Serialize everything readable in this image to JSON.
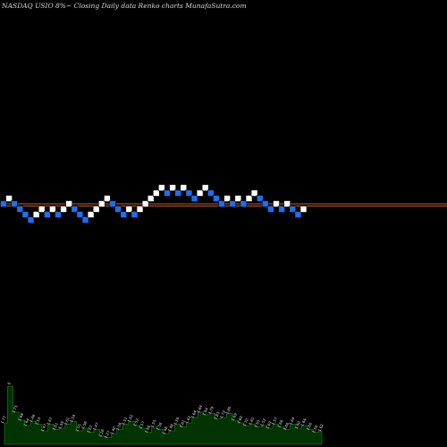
{
  "header": {
    "text": "NASDAQ USIO 8%~ Closing Daily data Renko charts MunafaSutra.com"
  },
  "chart_data": {
    "type": "renko",
    "colors": {
      "background": "#000000",
      "brick_up": "#ffffff",
      "brick_down": "#1e6ef0",
      "brick_border": "#000000",
      "ref_line": "#c85a28",
      "volume_fill": "#003300",
      "volume_line": "#1a6e1a",
      "volume_label": "#e8e8e8"
    },
    "ref_lines": [
      1.0,
      0.6
    ],
    "bricks": [
      {
        "level": 1,
        "dir": "down"
      },
      {
        "level": 2,
        "dir": "up"
      },
      {
        "level": 1,
        "dir": "down"
      },
      {
        "level": 0,
        "dir": "down"
      },
      {
        "level": -1,
        "dir": "down"
      },
      {
        "level": -2,
        "dir": "down"
      },
      {
        "level": -1,
        "dir": "up"
      },
      {
        "level": 0,
        "dir": "up"
      },
      {
        "level": -1,
        "dir": "down"
      },
      {
        "level": 0,
        "dir": "up"
      },
      {
        "level": -1,
        "dir": "down"
      },
      {
        "level": 0,
        "dir": "up"
      },
      {
        "level": 1,
        "dir": "up"
      },
      {
        "level": 0,
        "dir": "down"
      },
      {
        "level": -1,
        "dir": "down"
      },
      {
        "level": -2,
        "dir": "down"
      },
      {
        "level": -1,
        "dir": "up"
      },
      {
        "level": 0,
        "dir": "up"
      },
      {
        "level": 1,
        "dir": "up"
      },
      {
        "level": 2,
        "dir": "up"
      },
      {
        "level": 1,
        "dir": "down"
      },
      {
        "level": 0,
        "dir": "down"
      },
      {
        "level": -1,
        "dir": "down"
      },
      {
        "level": 0,
        "dir": "up"
      },
      {
        "level": -1,
        "dir": "down"
      },
      {
        "level": 0,
        "dir": "up"
      },
      {
        "level": 1,
        "dir": "up"
      },
      {
        "level": 2,
        "dir": "up"
      },
      {
        "level": 3,
        "dir": "up"
      },
      {
        "level": 4,
        "dir": "up"
      },
      {
        "level": 3,
        "dir": "down"
      },
      {
        "level": 4,
        "dir": "up"
      },
      {
        "level": 3,
        "dir": "down"
      },
      {
        "level": 4,
        "dir": "up"
      },
      {
        "level": 3,
        "dir": "down"
      },
      {
        "level": 2,
        "dir": "down"
      },
      {
        "level": 3,
        "dir": "up"
      },
      {
        "level": 4,
        "dir": "up"
      },
      {
        "level": 3,
        "dir": "down"
      },
      {
        "level": 2,
        "dir": "down"
      },
      {
        "level": 1,
        "dir": "down"
      },
      {
        "level": 2,
        "dir": "up"
      },
      {
        "level": 1,
        "dir": "down"
      },
      {
        "level": 2,
        "dir": "up"
      },
      {
        "level": 1,
        "dir": "down"
      },
      {
        "level": 2,
        "dir": "up"
      },
      {
        "level": 3,
        "dir": "up"
      },
      {
        "level": 2,
        "dir": "down"
      },
      {
        "level": 1,
        "dir": "down"
      },
      {
        "level": 0,
        "dir": "down"
      },
      {
        "level": 1,
        "dir": "up"
      },
      {
        "level": 0,
        "dir": "down"
      },
      {
        "level": 1,
        "dir": "up"
      },
      {
        "level": 0,
        "dir": "down"
      },
      {
        "level": -1,
        "dir": "down"
      },
      {
        "level": 0,
        "dir": "up"
      }
    ],
    "volume": [
      {
        "v": 0.32,
        "label": "1.77"
      },
      {
        "v": 0.86,
        "label": "0"
      },
      {
        "v": 0.48,
        "label": "1.75"
      },
      {
        "v": 0.36,
        "label": "1.68"
      },
      {
        "v": 0.28,
        "label": "1.64"
      },
      {
        "v": 0.34,
        "label": "1.46"
      },
      {
        "v": 0.3,
        "label": "1.53"
      },
      {
        "v": 0.2,
        "label": "1.47"
      },
      {
        "v": 0.3,
        "label": "1.67"
      },
      {
        "v": 0.22,
        "label": "1.61"
      },
      {
        "v": 0.24,
        "label": "1.59"
      },
      {
        "v": 0.3,
        "label": "1.61"
      },
      {
        "v": 0.34,
        "label": "1.54"
      },
      {
        "v": 0.2,
        "label": "1.55"
      },
      {
        "v": 0.24,
        "label": "1.56"
      },
      {
        "v": 0.18,
        "label": "1.67"
      },
      {
        "v": 0.22,
        "label": "1.47"
      },
      {
        "v": 0.12,
        "label": "1.26"
      },
      {
        "v": 0.1,
        "label": "1.27"
      },
      {
        "v": 0.16,
        "label": "1.40"
      },
      {
        "v": 0.22,
        "label": "1.58"
      },
      {
        "v": 0.3,
        "label": "1.51"
      },
      {
        "v": 0.34,
        "label": "1.62"
      },
      {
        "v": 0.28,
        "label": "1.52"
      },
      {
        "v": 0.24,
        "label": "1.57"
      },
      {
        "v": 0.18,
        "label": "1.60"
      },
      {
        "v": 0.26,
        "label": "1.55"
      },
      {
        "v": 0.22,
        "label": "1.56"
      },
      {
        "v": 0.16,
        "label": "1.48"
      },
      {
        "v": 0.2,
        "label": "1.46"
      },
      {
        "v": 0.3,
        "label": "1.59"
      },
      {
        "v": 0.26,
        "label": "1.61"
      },
      {
        "v": 0.32,
        "label": "1.62"
      },
      {
        "v": 0.4,
        "label": "1.64"
      },
      {
        "v": 0.48,
        "label": "1.84"
      },
      {
        "v": 0.44,
        "label": "1.84"
      },
      {
        "v": 0.46,
        "label": "1.79"
      },
      {
        "v": 0.38,
        "label": "1.83"
      },
      {
        "v": 0.4,
        "label": "1.72"
      },
      {
        "v": 0.46,
        "label": "1.80"
      },
      {
        "v": 0.36,
        "label": "1.69"
      },
      {
        "v": 0.32,
        "label": "1.60"
      },
      {
        "v": 0.28,
        "label": "1.70"
      },
      {
        "v": 0.3,
        "label": "1.61"
      },
      {
        "v": 0.26,
        "label": "1.55"
      },
      {
        "v": 0.28,
        "label": "1.52"
      },
      {
        "v": 0.24,
        "label": "1.69"
      },
      {
        "v": 0.3,
        "label": "1.57"
      },
      {
        "v": 0.26,
        "label": "1.66"
      },
      {
        "v": 0.22,
        "label": "1.60"
      },
      {
        "v": 0.3,
        "label": "1.64"
      },
      {
        "v": 0.24,
        "label": "1.60"
      },
      {
        "v": 0.28,
        "label": "1.64"
      },
      {
        "v": 0.22,
        "label": "1.60"
      },
      {
        "v": 0.18,
        "label": "1.50"
      },
      {
        "v": 0.2,
        "label": "1.62"
      }
    ]
  }
}
